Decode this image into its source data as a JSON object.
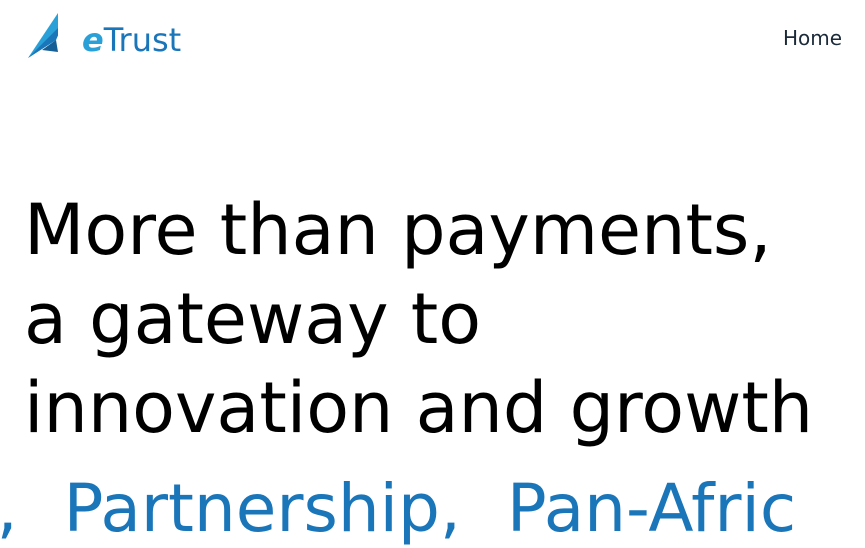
{
  "header": {
    "logo_text_prefix": "e",
    "logo_text_rest": "Trust",
    "logo_icon": "arrow-sail-logo-icon",
    "nav": [
      {
        "label": "Home"
      }
    ]
  },
  "hero": {
    "lines": [
      "More than payments,",
      "a gateway to",
      "innovation and growth"
    ]
  },
  "marquee": {
    "items": [
      "e,",
      "Partnership,",
      "Pan-Afric"
    ]
  },
  "colors": {
    "brand_blue": "#1a76b9",
    "brand_light_blue": "#2aa0d8",
    "text": "#000000",
    "nav_text": "#1b2a3a"
  }
}
